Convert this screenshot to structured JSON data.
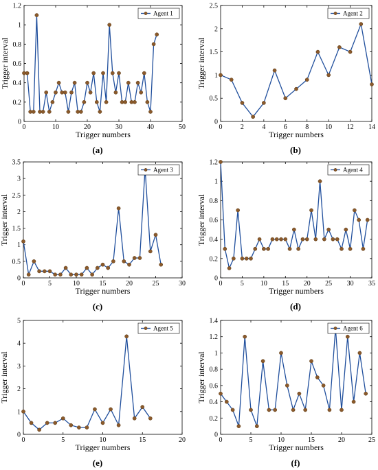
{
  "chart_data": [
    {
      "type": "line",
      "panel_label": "(a)",
      "xlabel": "Trigger numbers",
      "ylabel": "Trigger interval",
      "xlim": [
        0,
        50
      ],
      "ylim": [
        0,
        1.2
      ],
      "xticks": [
        0,
        10,
        20,
        30,
        40,
        50
      ],
      "yticks": [
        0,
        0.2,
        0.4,
        0.6,
        0.8,
        1,
        1.2
      ],
      "legend_position": "top-right",
      "series": [
        {
          "name": "Agent 1",
          "x": [
            0,
            1,
            2,
            3,
            4,
            5,
            6,
            7,
            8,
            9,
            10,
            11,
            12,
            13,
            14,
            15,
            16,
            17,
            18,
            19,
            20,
            21,
            22,
            23,
            24,
            25,
            26,
            27,
            28,
            29,
            30,
            31,
            32,
            33,
            34,
            35,
            36,
            37,
            38,
            39,
            40,
            41,
            42
          ],
          "y": [
            0.5,
            0.5,
            0.1,
            0.1,
            1.1,
            0.1,
            0.1,
            0.3,
            0.1,
            0.2,
            0.3,
            0.4,
            0.3,
            0.3,
            0.1,
            0.3,
            0.4,
            0.1,
            0.1,
            0.2,
            0.4,
            0.3,
            0.5,
            0.2,
            0.1,
            0.5,
            0.2,
            1.0,
            0.5,
            0.3,
            0.5,
            0.2,
            0.2,
            0.4,
            0.2,
            0.2,
            0.4,
            0.3,
            0.5,
            0.2,
            0.1,
            0.8,
            0.9
          ]
        }
      ]
    },
    {
      "type": "line",
      "panel_label": "(b)",
      "xlabel": "Trigger numbers",
      "ylabel": "Trigger interval",
      "xlim": [
        0,
        14
      ],
      "ylim": [
        0,
        2.5
      ],
      "xticks": [
        0,
        2,
        4,
        6,
        8,
        10,
        12,
        14
      ],
      "yticks": [
        0,
        0.5,
        1,
        1.5,
        2,
        2.5
      ],
      "legend_position": "top-right",
      "series": [
        {
          "name": "Agent 2",
          "x": [
            0,
            1,
            2,
            3,
            4,
            5,
            6,
            7,
            8,
            9,
            10,
            11,
            12,
            13,
            14
          ],
          "y": [
            1.0,
            0.9,
            0.4,
            0.1,
            0.4,
            1.1,
            0.5,
            0.7,
            0.9,
            1.5,
            1.0,
            1.6,
            1.5,
            2.1,
            0.8
          ]
        }
      ]
    },
    {
      "type": "line",
      "panel_label": "(c)",
      "xlabel": "Trigger numbers",
      "ylabel": "Trigger interval",
      "xlim": [
        0,
        30
      ],
      "ylim": [
        0,
        3.5
      ],
      "xticks": [
        0,
        5,
        10,
        15,
        20,
        25,
        30
      ],
      "yticks": [
        0,
        0.5,
        1,
        1.5,
        2,
        2.5,
        3,
        3.5
      ],
      "legend_position": "top-right",
      "series": [
        {
          "name": "Agent 3",
          "x": [
            0,
            1,
            2,
            3,
            4,
            5,
            6,
            7,
            8,
            9,
            10,
            11,
            12,
            13,
            14,
            15,
            16,
            17,
            18,
            19,
            20,
            21,
            22,
            23,
            24,
            25,
            26
          ],
          "y": [
            1.1,
            0.1,
            0.5,
            0.2,
            0.2,
            0.2,
            0.1,
            0.1,
            0.3,
            0.1,
            0.1,
            0.1,
            0.3,
            0.1,
            0.3,
            0.4,
            0.3,
            0.5,
            2.1,
            0.5,
            0.4,
            0.6,
            0.6,
            3.3,
            0.8,
            1.3,
            0.4
          ]
        }
      ]
    },
    {
      "type": "line",
      "panel_label": "(d)",
      "xlabel": "Trigger numbers",
      "ylabel": "Trigger interval",
      "xlim": [
        0,
        35
      ],
      "ylim": [
        0,
        1.2
      ],
      "xticks": [
        0,
        5,
        10,
        15,
        20,
        25,
        30,
        35
      ],
      "yticks": [
        0,
        0.2,
        0.4,
        0.6,
        0.8,
        1,
        1.2
      ],
      "legend_position": "top-right",
      "series": [
        {
          "name": "Agent 4",
          "x": [
            0,
            1,
            2,
            3,
            4,
            5,
            6,
            7,
            8,
            9,
            10,
            11,
            12,
            13,
            14,
            15,
            16,
            17,
            18,
            19,
            20,
            21,
            22,
            23,
            24,
            25,
            26,
            27,
            28,
            29,
            30,
            31,
            32,
            33,
            34
          ],
          "y": [
            1.2,
            0.3,
            0.1,
            0.2,
            0.7,
            0.2,
            0.2,
            0.2,
            0.3,
            0.4,
            0.3,
            0.3,
            0.4,
            0.4,
            0.4,
            0.4,
            0.3,
            0.5,
            0.3,
            0.4,
            0.4,
            0.7,
            0.4,
            1.0,
            0.4,
            0.5,
            0.4,
            0.4,
            0.3,
            0.5,
            0.3,
            0.7,
            0.6,
            0.3,
            0.6
          ]
        }
      ]
    },
    {
      "type": "line",
      "panel_label": "(e)",
      "xlabel": "Trigger numbers",
      "ylabel": "Trigger interval",
      "xlim": [
        0,
        20
      ],
      "ylim": [
        0,
        5
      ],
      "xticks": [
        0,
        5,
        10,
        15,
        20
      ],
      "yticks": [
        0,
        1,
        2,
        3,
        4,
        5
      ],
      "legend_position": "top-right",
      "series": [
        {
          "name": "Agent 5",
          "x": [
            0,
            1,
            2,
            3,
            4,
            5,
            6,
            7,
            8,
            9,
            10,
            11,
            12,
            13,
            14,
            15,
            16
          ],
          "y": [
            1.0,
            0.5,
            0.2,
            0.5,
            0.5,
            0.7,
            0.4,
            0.3,
            0.3,
            1.1,
            0.5,
            1.1,
            0.4,
            4.3,
            0.7,
            1.2,
            0.7
          ]
        }
      ]
    },
    {
      "type": "line",
      "panel_label": "(f)",
      "xlabel": "Trigger numbers",
      "ylabel": "Trigger interval",
      "xlim": [
        0,
        25
      ],
      "ylim": [
        0,
        1.4
      ],
      "xticks": [
        0,
        5,
        10,
        15,
        20,
        25
      ],
      "yticks": [
        0,
        0.2,
        0.4,
        0.6,
        0.8,
        1,
        1.2,
        1.4
      ],
      "legend_position": "top-right",
      "series": [
        {
          "name": "Agent 6",
          "x": [
            0,
            1,
            2,
            3,
            4,
            5,
            6,
            7,
            8,
            9,
            10,
            11,
            12,
            13,
            14,
            15,
            16,
            17,
            18,
            19,
            20,
            21,
            22,
            23,
            24
          ],
          "y": [
            0.5,
            0.4,
            0.3,
            0.1,
            1.2,
            0.3,
            0.1,
            0.9,
            0.3,
            0.3,
            1.0,
            0.6,
            0.3,
            0.5,
            0.3,
            0.9,
            0.7,
            0.6,
            0.3,
            1.3,
            0.3,
            1.2,
            0.4,
            1.0,
            0.5
          ]
        }
      ]
    }
  ],
  "colors": {
    "line": "#1f4e9c",
    "marker_fill": "#8b5a2b",
    "marker_edge": "#5a3a18",
    "axis": "#000000"
  }
}
